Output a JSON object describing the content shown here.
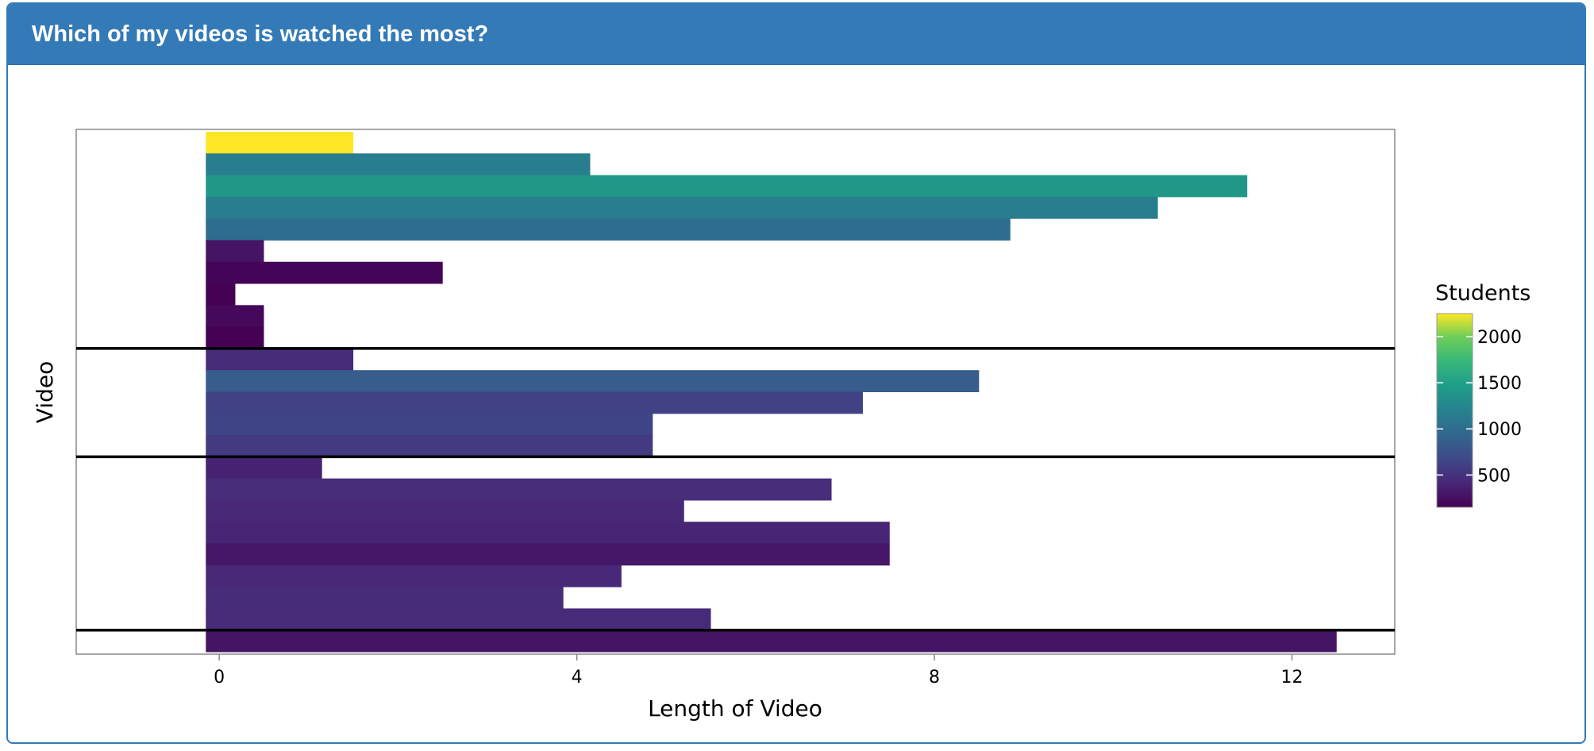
{
  "panel": {
    "title": "Which of my videos is watched the most?"
  },
  "chart_data": {
    "type": "bar",
    "orientation": "horizontal",
    "xlabel": "Length of Video",
    "ylabel": "Video",
    "xlim": [
      -1.6,
      13.15
    ],
    "xticks": [
      "0",
      "4",
      "8",
      "12"
    ],
    "xtick_values": [
      0,
      4,
      8,
      12
    ],
    "grid": false,
    "bar_start": -0.15,
    "colors": {
      "low": "#440154",
      "mid": "#31688e",
      "mid2": "#21918c",
      "high": "#35b779",
      "top": "#fde725"
    },
    "legend": {
      "title": "Students",
      "position": "right",
      "min": 150,
      "max": 2250,
      "ticks": [
        "500",
        "1000",
        "1500",
        "2000"
      ],
      "tick_values": [
        500,
        1000,
        1500,
        2000
      ]
    },
    "bars": [
      {
        "length": 1.5,
        "students": 2250
      },
      {
        "length": 4.15,
        "students": 1150
      },
      {
        "length": 11.5,
        "students": 1400
      },
      {
        "length": 10.5,
        "students": 1150
      },
      {
        "length": 8.85,
        "students": 1000
      },
      {
        "length": 0.5,
        "students": 280
      },
      {
        "length": 2.5,
        "students": 180
      },
      {
        "length": 0.18,
        "students": 110
      },
      {
        "length": 0.5,
        "students": 200
      },
      {
        "length": 0.5,
        "students": 120
      },
      {
        "length": 1.5,
        "students": 450
      },
      {
        "length": 8.5,
        "students": 850
      },
      {
        "length": 7.2,
        "students": 620
      },
      {
        "length": 4.85,
        "students": 640
      },
      {
        "length": 4.85,
        "students": 560
      },
      {
        "length": 1.15,
        "students": 380
      },
      {
        "length": 6.85,
        "students": 460
      },
      {
        "length": 5.2,
        "students": 420
      },
      {
        "length": 7.5,
        "students": 400
      },
      {
        "length": 7.5,
        "students": 300
      },
      {
        "length": 4.5,
        "students": 420
      },
      {
        "length": 3.85,
        "students": 450
      },
      {
        "length": 5.5,
        "students": 440
      },
      {
        "length": 12.5,
        "students": 280
      }
    ],
    "separators_after_bar": [
      10,
      15,
      23
    ]
  }
}
